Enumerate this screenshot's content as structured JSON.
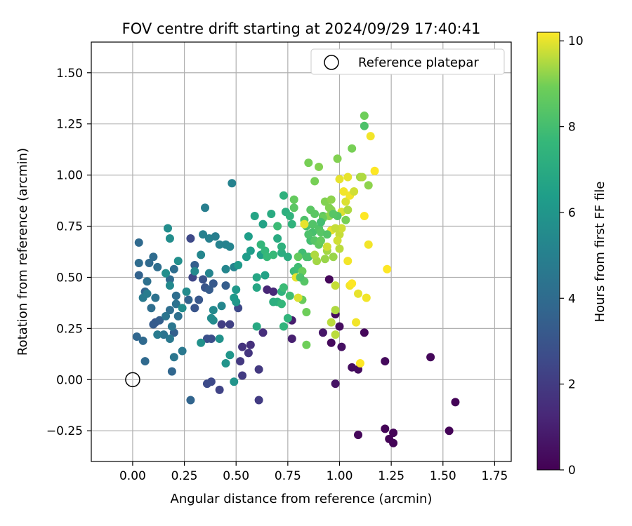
{
  "chart_data": {
    "type": "scatter",
    "title": "FOV centre drift starting at 2024/09/29 17:40:41",
    "xlabel": "Angular distance from reference (arcmin)",
    "ylabel": "Rotation from reference (arcmin)",
    "xlim": [
      -0.2,
      1.83
    ],
    "ylim": [
      -0.4,
      1.65
    ],
    "x_ticks": [
      0.0,
      0.25,
      0.5,
      0.75,
      1.0,
      1.25,
      1.5,
      1.75
    ],
    "x_tick_labels": [
      "0.00",
      "0.25",
      "0.50",
      "0.75",
      "1.00",
      "1.25",
      "1.50",
      "1.75"
    ],
    "y_ticks": [
      -0.25,
      0.0,
      0.25,
      0.5,
      0.75,
      1.0,
      1.25,
      1.5
    ],
    "y_tick_labels": [
      "−0.25",
      "0.00",
      "0.25",
      "0.50",
      "0.75",
      "1.00",
      "1.25",
      "1.50"
    ],
    "grid": true,
    "legend": {
      "placement": "top-right",
      "entries": [
        "Reference platepar"
      ]
    },
    "reference": {
      "label": "Reference platepar",
      "x": 0.0,
      "y": 0.0
    },
    "colorbar": {
      "label": "Hours from first FF file",
      "colormap": "viridis",
      "range": [
        0,
        10.2
      ],
      "ticks": [
        0,
        2,
        4,
        6,
        8,
        10
      ],
      "tick_labels": [
        "0",
        "2",
        "4",
        "6",
        "8",
        "10"
      ]
    },
    "points": [
      [
        0.95,
        0.49,
        0.2
      ],
      [
        0.98,
        0.32,
        0.3
      ],
      [
        1.0,
        0.26,
        0.4
      ],
      [
        0.96,
        0.18,
        0.3
      ],
      [
        1.01,
        0.16,
        0.5
      ],
      [
        1.06,
        0.06,
        0.4
      ],
      [
        1.09,
        0.05,
        0.4
      ],
      [
        1.12,
        0.23,
        0.2
      ],
      [
        1.22,
        0.09,
        0.3
      ],
      [
        1.44,
        0.11,
        0.2
      ],
      [
        1.56,
        -0.11,
        0.1
      ],
      [
        1.53,
        -0.25,
        0.1
      ],
      [
        1.22,
        -0.24,
        0.1
      ],
      [
        1.24,
        -0.29,
        0.1
      ],
      [
        1.26,
        -0.26,
        0.1
      ],
      [
        1.26,
        -0.31,
        0.1
      ],
      [
        1.09,
        -0.27,
        0.2
      ],
      [
        0.98,
        -0.02,
        0.6
      ],
      [
        0.92,
        0.23,
        0.7
      ],
      [
        0.77,
        0.29,
        0.9
      ],
      [
        0.77,
        0.2,
        1.0
      ],
      [
        0.65,
        0.44,
        1.2
      ],
      [
        0.68,
        0.43,
        1.3
      ],
      [
        0.63,
        0.23,
        1.5
      ],
      [
        0.57,
        0.17,
        1.6
      ],
      [
        0.53,
        0.16,
        1.7
      ],
      [
        0.56,
        0.13,
        1.8
      ],
      [
        0.52,
        0.09,
        1.9
      ],
      [
        0.53,
        0.02,
        2.0
      ],
      [
        0.61,
        0.05,
        1.9
      ],
      [
        0.61,
        -0.1,
        2.0
      ],
      [
        0.43,
        0.27,
        2.1
      ],
      [
        0.47,
        0.27,
        2.2
      ],
      [
        0.51,
        0.35,
        2.5
      ],
      [
        0.42,
        -0.05,
        2.3
      ],
      [
        0.38,
        -0.01,
        2.5
      ],
      [
        0.36,
        -0.02,
        2.6
      ],
      [
        0.38,
        0.2,
        2.7
      ],
      [
        0.36,
        0.2,
        2.8
      ],
      [
        0.29,
        0.5,
        2.4
      ],
      [
        0.28,
        0.69,
        2.5
      ],
      [
        0.34,
        0.49,
        2.9
      ],
      [
        0.35,
        0.45,
        3.0
      ],
      [
        0.39,
        0.47,
        3.2
      ],
      [
        0.3,
        0.35,
        3.0
      ],
      [
        0.32,
        0.39,
        3.1
      ],
      [
        0.37,
        0.44,
        3.3
      ],
      [
        0.3,
        0.56,
        3.5
      ],
      [
        0.45,
        0.46,
        3.4
      ],
      [
        0.11,
        0.28,
        3.0
      ],
      [
        0.13,
        0.29,
        3.4
      ],
      [
        0.1,
        0.27,
        3.3
      ],
      [
        0.2,
        0.23,
        3.5
      ],
      [
        0.27,
        0.39,
        3.6
      ],
      [
        0.28,
        -0.1,
        3.7
      ],
      [
        0.19,
        0.04,
        3.8
      ],
      [
        0.06,
        0.09,
        3.9
      ],
      [
        0.05,
        0.19,
        3.9
      ],
      [
        0.02,
        0.21,
        3.8
      ],
      [
        0.03,
        0.67,
        3.9
      ],
      [
        0.03,
        0.57,
        4.0
      ],
      [
        0.03,
        0.51,
        3.6
      ],
      [
        0.06,
        0.43,
        3.7
      ],
      [
        0.08,
        0.57,
        3.9
      ],
      [
        0.1,
        0.6,
        4.0
      ],
      [
        0.12,
        0.55,
        4.1
      ],
      [
        0.18,
        0.49,
        4.0
      ],
      [
        0.2,
        0.54,
        4.1
      ],
      [
        0.21,
        0.41,
        4.1
      ],
      [
        0.18,
        0.34,
        4.1
      ],
      [
        0.22,
        0.31,
        4.2
      ],
      [
        0.21,
        0.37,
        4.3
      ],
      [
        0.07,
        0.48,
        4.2
      ],
      [
        0.09,
        0.35,
        4.1
      ],
      [
        0.11,
        0.4,
        4.3
      ],
      [
        0.16,
        0.31,
        4.4
      ],
      [
        0.15,
        0.22,
        4.4
      ],
      [
        0.19,
        0.26,
        4.5
      ],
      [
        0.2,
        0.11,
        4.5
      ],
      [
        0.24,
        0.14,
        4.6
      ],
      [
        0.18,
        0.2,
        4.6
      ],
      [
        0.12,
        0.22,
        4.7
      ],
      [
        0.05,
        0.4,
        4.7
      ],
      [
        0.07,
        0.42,
        4.8
      ],
      [
        0.35,
        0.84,
        4.9
      ],
      [
        0.34,
        0.71,
        5.0
      ],
      [
        0.37,
        0.69,
        5.0
      ],
      [
        0.4,
        0.7,
        4.9
      ],
      [
        0.42,
        0.66,
        5.1
      ],
      [
        0.45,
        0.66,
        5.1
      ],
      [
        0.47,
        0.65,
        5.2
      ],
      [
        0.48,
        0.96,
        5.1
      ],
      [
        0.49,
        0.55,
        5.2
      ],
      [
        0.45,
        0.54,
        5.3
      ],
      [
        0.43,
        0.36,
        5.3
      ],
      [
        0.39,
        0.34,
        5.4
      ],
      [
        0.39,
        0.29,
        5.5
      ],
      [
        0.38,
        0.3,
        5.5
      ],
      [
        0.37,
        0.52,
        5.2
      ],
      [
        0.33,
        0.61,
        5.3
      ],
      [
        0.3,
        0.53,
        5.4
      ],
      [
        0.26,
        0.43,
        5.5
      ],
      [
        0.24,
        0.35,
        5.6
      ],
      [
        0.18,
        0.46,
        5.4
      ],
      [
        0.18,
        0.69,
        5.6
      ],
      [
        0.17,
        0.74,
        5.6
      ],
      [
        0.16,
        0.52,
        5.7
      ],
      [
        0.22,
        0.58,
        5.7
      ],
      [
        0.33,
        0.18,
        5.8
      ],
      [
        0.42,
        0.2,
        5.8
      ],
      [
        0.45,
        0.08,
        5.9
      ],
      [
        0.47,
        0.12,
        6.0
      ],
      [
        0.49,
        -0.01,
        5.9
      ],
      [
        0.5,
        0.38,
        6.1
      ],
      [
        0.5,
        0.44,
        6.1
      ],
      [
        0.49,
        0.4,
        6.2
      ],
      [
        0.51,
        0.56,
        6.2
      ],
      [
        0.55,
        0.6,
        6.3
      ],
      [
        0.56,
        0.7,
        6.4
      ],
      [
        0.57,
        0.63,
        6.4
      ],
      [
        0.62,
        0.61,
        6.5
      ],
      [
        0.63,
        0.76,
        6.6
      ],
      [
        0.59,
        0.8,
        6.7
      ],
      [
        0.64,
        0.51,
        6.6
      ],
      [
        0.6,
        0.5,
        6.8
      ],
      [
        0.6,
        0.45,
        6.8
      ],
      [
        0.6,
        0.26,
        6.9
      ],
      [
        0.67,
        0.81,
        7.0
      ],
      [
        0.7,
        0.69,
        7.0
      ],
      [
        0.72,
        0.62,
        7.1
      ],
      [
        0.75,
        0.6,
        7.1
      ],
      [
        0.74,
        0.82,
        7.2
      ],
      [
        0.72,
        0.65,
        7.3
      ],
      [
        0.73,
        0.9,
        7.3
      ],
      [
        0.76,
        0.8,
        7.4
      ],
      [
        0.77,
        0.76,
        7.4
      ],
      [
        0.7,
        0.38,
        7.3
      ],
      [
        0.72,
        0.43,
        7.4
      ],
      [
        0.73,
        0.26,
        7.5
      ],
      [
        0.75,
        0.3,
        7.5
      ],
      [
        0.62,
        0.66,
        7.6
      ],
      [
        0.64,
        0.63,
        7.6
      ],
      [
        0.65,
        0.6,
        7.7
      ],
      [
        0.68,
        0.61,
        7.7
      ],
      [
        0.7,
        0.75,
        7.8
      ],
      [
        0.78,
        0.53,
        7.8
      ],
      [
        0.8,
        0.55,
        7.9
      ],
      [
        0.82,
        0.62,
        7.9
      ],
      [
        0.85,
        0.6,
        8.0
      ],
      [
        0.86,
        0.68,
        8.0
      ],
      [
        0.87,
        0.72,
        8.1
      ],
      [
        0.84,
        0.75,
        8.1
      ],
      [
        0.83,
        0.78,
        8.2
      ],
      [
        0.85,
        0.71,
        8.2
      ],
      [
        0.87,
        0.76,
        8.3
      ],
      [
        0.9,
        0.74,
        8.3
      ],
      [
        0.88,
        0.68,
        8.4
      ],
      [
        0.91,
        0.72,
        8.4
      ],
      [
        0.86,
        0.83,
        8.5
      ],
      [
        0.88,
        0.81,
        8.5
      ],
      [
        0.92,
        0.8,
        8.6
      ],
      [
        0.78,
        0.88,
        8.7
      ],
      [
        0.8,
        0.6,
        8.7
      ],
      [
        0.82,
        0.53,
        8.8
      ],
      [
        0.82,
        0.39,
        8.8
      ],
      [
        0.84,
        0.33,
        8.9
      ],
      [
        0.84,
        0.17,
        8.9
      ],
      [
        0.85,
        1.06,
        9.0
      ],
      [
        0.88,
        0.97,
        9.0
      ],
      [
        0.9,
        1.04,
        9.1
      ],
      [
        0.93,
        0.87,
        9.1
      ],
      [
        0.96,
        0.83,
        9.2
      ],
      [
        0.95,
        0.8,
        9.2
      ],
      [
        0.93,
        0.59,
        9.3
      ],
      [
        0.97,
        0.6,
        9.3
      ],
      [
        0.94,
        0.63,
        9.4
      ],
      [
        0.89,
        0.58,
        9.4
      ],
      [
        0.88,
        0.61,
        9.5
      ],
      [
        0.98,
        0.34,
        9.5
      ],
      [
        0.96,
        0.28,
        9.6
      ],
      [
        0.98,
        0.22,
        9.6
      ],
      [
        0.98,
        0.46,
        9.7
      ],
      [
        1.0,
        0.71,
        9.7
      ],
      [
        1.01,
        0.74,
        9.8
      ],
      [
        0.99,
        0.68,
        9.8
      ],
      [
        1.01,
        0.82,
        9.9
      ],
      [
        1.03,
        0.87,
        9.9
      ],
      [
        1.04,
        0.99,
        10.0
      ],
      [
        1.0,
        0.98,
        10.0
      ],
      [
        1.02,
        0.92,
        10.1
      ],
      [
        1.05,
        0.9,
        10.1
      ],
      [
        0.96,
        0.73,
        10.0
      ],
      [
        1.04,
        0.58,
        10.1
      ],
      [
        1.05,
        0.46,
        10.1
      ],
      [
        1.06,
        0.47,
        10.2
      ],
      [
        1.08,
        0.28,
        10.1
      ],
      [
        1.1,
        0.08,
        10.2
      ],
      [
        1.13,
        0.4,
        10.1
      ],
      [
        1.09,
        0.42,
        10.0
      ],
      [
        1.12,
        0.8,
        10.2
      ],
      [
        1.14,
        0.66,
        10.1
      ],
      [
        1.23,
        0.54,
        10.2
      ],
      [
        1.15,
        1.19,
        10.1
      ],
      [
        1.17,
        1.02,
        10.2
      ],
      [
        0.83,
        0.76,
        10.0
      ],
      [
        0.79,
        0.5,
        10.0
      ],
      [
        0.8,
        0.4,
        9.9
      ],
      [
        0.94,
        0.65,
        9.8
      ],
      [
        0.98,
        0.74,
        9.7
      ],
      [
        1.0,
        0.64,
        9.6
      ],
      [
        1.06,
        1.13,
        9.0
      ],
      [
        1.12,
        1.24,
        8.2
      ],
      [
        1.12,
        1.29,
        8.9
      ],
      [
        1.14,
        0.95,
        9.2
      ],
      [
        1.1,
        0.99,
        9.4
      ],
      [
        1.11,
        0.99,
        9.5
      ],
      [
        0.99,
        1.08,
        9.1
      ],
      [
        0.96,
        0.88,
        9.2
      ],
      [
        0.95,
        0.84,
        9.1
      ],
      [
        0.92,
        0.79,
        8.8
      ],
      [
        0.9,
        0.66,
        8.6
      ],
      [
        0.91,
        0.68,
        8.7
      ],
      [
        0.84,
        0.6,
        8.1
      ],
      [
        0.83,
        0.48,
        8.4
      ],
      [
        0.81,
        0.5,
        8.2
      ],
      [
        0.76,
        0.41,
        7.9
      ],
      [
        0.73,
        0.45,
        7.8
      ],
      [
        0.72,
        0.37,
        7.6
      ],
      [
        0.68,
        0.38,
        7.2
      ],
      [
        0.78,
        0.84,
        8.5
      ],
      [
        0.91,
        0.77,
        8.0
      ],
      [
        0.94,
        0.71,
        8.3
      ],
      [
        0.99,
        0.8,
        8.3
      ],
      [
        1.03,
        0.78,
        9.0
      ],
      [
        1.04,
        0.83,
        9.5
      ],
      [
        0.97,
        0.81,
        8.4
      ],
      [
        1.07,
        0.92,
        9.8
      ]
    ]
  }
}
